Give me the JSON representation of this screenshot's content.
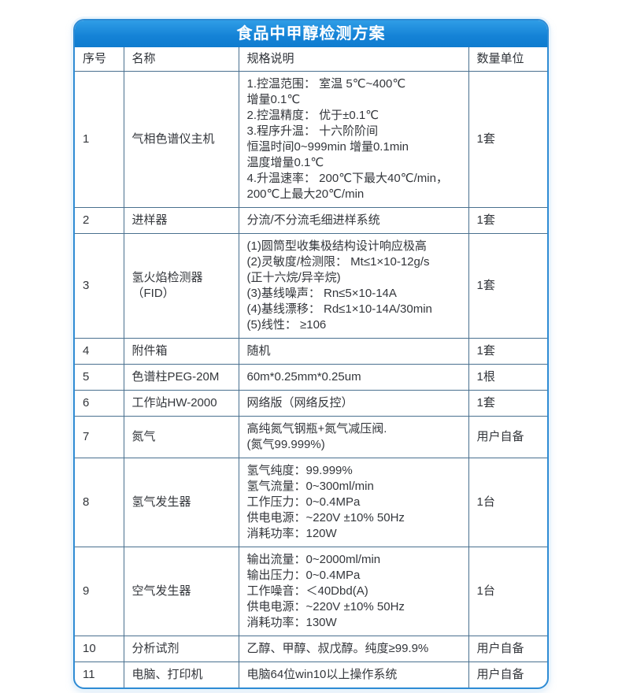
{
  "title": "食品中甲醇检测方案",
  "colors": {
    "accent_blue": "#1482d6",
    "frame_border": "#2e8bd4",
    "grid_line": "#49708f",
    "title_text": "#ffffff",
    "body_text": "#33363b"
  },
  "table": {
    "headers": {
      "no": "序号",
      "name": "名称",
      "spec": "规格说明",
      "qty": "数量单位"
    },
    "rows": [
      {
        "no": "1",
        "name": "气相色谱仪主机",
        "spec": "1.控温范围： 室温 5℃~400℃\n增量0.1℃\n2.控温精度： 优于±0.1℃\n3.程序升温： 十六阶阶间\n恒温时间0~999min 增量0.1min\n温度增量0.1℃\n4.升温速率： 200℃下最大40℃/min，\n200℃上最大20℃/min",
        "qty": "1套"
      },
      {
        "no": "2",
        "name": "进样器",
        "spec": "分流/不分流毛细进样系统",
        "qty": "1套"
      },
      {
        "no": "3",
        "name": "氢火焰检测器（FID）",
        "spec": "(1)圆筒型收集极结构设计响应极高\n(2)灵敏度/检测限： Mt≤1×10-12g/s\n(正十六烷/异辛烷)\n(3)基线噪声： Rn≤5×10-14A\n(4)基线漂移： Rd≤1×10-14A/30min\n(5)线性： ≥106",
        "qty": "1套"
      },
      {
        "no": "4",
        "name": "附件箱",
        "spec": "随机",
        "qty": "1套"
      },
      {
        "no": "5",
        "name": "色谱柱PEG-20M",
        "spec": "60m*0.25mm*0.25um",
        "qty": "1根"
      },
      {
        "no": "6",
        "name": "工作站HW-2000",
        "spec": "网络版（网络反控）",
        "qty": "1套"
      },
      {
        "no": "7",
        "name": "氮气",
        "spec": "高纯氮气钢瓶+氮气减压阀.\n(氮气99.999%)",
        "qty": "用户自备"
      },
      {
        "no": "8",
        "name": "氢气发生器",
        "spec": "氢气纯度：99.999%\n氢气流量：0~300ml/min\n工作压力：0~0.4MPa\n供电电源：~220V ±10% 50Hz\n消耗功率：120W",
        "qty": "1台"
      },
      {
        "no": "9",
        "name": "空气发生器",
        "spec": "输出流量：0~2000ml/min\n输出压力：0~0.4MPa\n工作噪音：＜40Dbd(A)\n供电电源：~220V ±10% 50Hz\n消耗功率：130W",
        "qty": "1台"
      },
      {
        "no": "10",
        "name": "分析试剂",
        "spec": "乙醇、甲醇、叔戊醇。纯度≥99.9%",
        "qty": "用户自备"
      },
      {
        "no": "11",
        "name": "电脑、打印机",
        "spec": "电脑64位win10以上操作系统",
        "qty": "用户自备"
      }
    ]
  }
}
